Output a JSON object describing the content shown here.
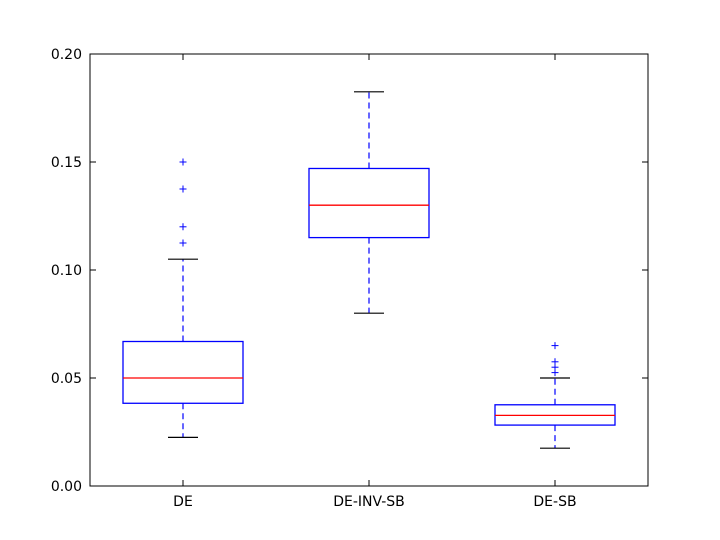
{
  "chart_data": {
    "type": "boxplot",
    "title": "",
    "xlabel": "",
    "ylabel": "",
    "categories": [
      "DE",
      "DE-INV-SB",
      "DE-SB"
    ],
    "ylim": [
      0.0,
      0.2
    ],
    "yticks": [
      0.0,
      0.05,
      0.1,
      0.15,
      0.2
    ],
    "ytick_labels": [
      "0.00",
      "0.05",
      "0.10",
      "0.15",
      "0.20"
    ],
    "grid": false,
    "legend": "none",
    "colors": {
      "box": "#0000ff",
      "median": "#ff0000",
      "cap": "#000000",
      "outlier": "#0000ff",
      "axes": "#000000"
    },
    "boxes": [
      {
        "label": "DE",
        "whisker_low": 0.0225,
        "q1": 0.0383,
        "median": 0.05,
        "q3": 0.0669,
        "whisker_high": 0.105,
        "outliers": [
          0.1125,
          0.12,
          0.1375,
          0.15
        ]
      },
      {
        "label": "DE-INV-SB",
        "whisker_low": 0.08,
        "q1": 0.115,
        "median": 0.13,
        "q3": 0.147,
        "whisker_high": 0.1825,
        "outliers": []
      },
      {
        "label": "DE-SB",
        "whisker_low": 0.0175,
        "q1": 0.0282,
        "median": 0.0327,
        "q3": 0.0376,
        "whisker_high": 0.05,
        "outliers": [
          0.0525,
          0.055,
          0.0575,
          0.065
        ]
      }
    ]
  }
}
